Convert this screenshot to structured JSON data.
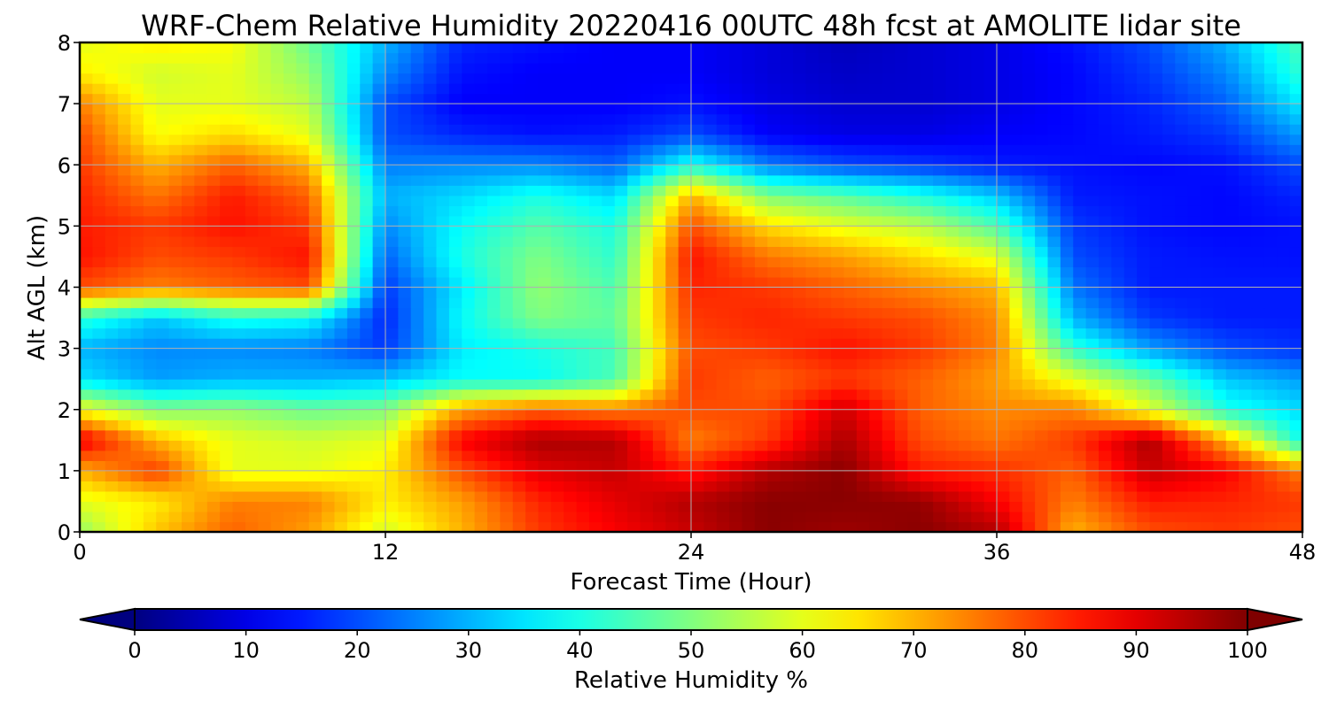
{
  "chart_data": {
    "type": "heatmap",
    "title": "WRF-Chem Relative Humidity 20220416 00UTC 48h fcst at AMOLITE lidar site",
    "xlabel": "Forecast Time (Hour)",
    "ylabel": "Alt AGL (km)",
    "xlim": [
      0,
      48
    ],
    "ylim": [
      0,
      8
    ],
    "x_ticks": [
      0,
      12,
      24,
      36,
      48
    ],
    "y_ticks": [
      0,
      1,
      2,
      3,
      4,
      5,
      6,
      7,
      8
    ],
    "grid": true,
    "colorscale": "jet",
    "colorbar": {
      "label": "Relative Humidity %",
      "range": [
        0,
        100
      ],
      "ticks": [
        0,
        10,
        20,
        30,
        40,
        50,
        60,
        70,
        80,
        90,
        100
      ],
      "orientation": "horizontal",
      "placement": "bottom",
      "extend": "both"
    },
    "x": [
      0,
      3,
      6,
      9,
      12,
      15,
      18,
      21,
      24,
      27,
      30,
      33,
      36,
      39,
      42,
      45,
      48
    ],
    "y": [
      0,
      0.5,
      1,
      1.5,
      2,
      2.5,
      3,
      3.5,
      4,
      4.5,
      5,
      5.5,
      6,
      6.5,
      7,
      7.5,
      8
    ],
    "z": [
      [
        52,
        68,
        78,
        72,
        58,
        70,
        82,
        88,
        93,
        99,
        97,
        99,
        95,
        70,
        80,
        82,
        80
      ],
      [
        60,
        64,
        75,
        75,
        64,
        72,
        84,
        90,
        95,
        99,
        99,
        98,
        88,
        75,
        85,
        84,
        82
      ],
      [
        70,
        82,
        60,
        60,
        64,
        80,
        90,
        93,
        85,
        95,
        99,
        85,
        83,
        78,
        93,
        88,
        75
      ],
      [
        90,
        70,
        60,
        58,
        60,
        88,
        96,
        95,
        75,
        82,
        96,
        80,
        76,
        82,
        96,
        70,
        38
      ],
      [
        62,
        50,
        52,
        48,
        50,
        72,
        78,
        75,
        80,
        80,
        92,
        78,
        74,
        75,
        60,
        40,
        34
      ],
      [
        35,
        28,
        30,
        30,
        32,
        38,
        38,
        45,
        82,
        78,
        82,
        78,
        72,
        60,
        48,
        32,
        28
      ],
      [
        30,
        26,
        26,
        25,
        18,
        36,
        40,
        44,
        80,
        82,
        86,
        82,
        75,
        42,
        28,
        20,
        17
      ],
      [
        42,
        32,
        40,
        38,
        16,
        38,
        50,
        47,
        82,
        84,
        82,
        80,
        74,
        30,
        18,
        15,
        15
      ],
      [
        80,
        75,
        78,
        80,
        18,
        36,
        52,
        45,
        84,
        82,
        78,
        74,
        70,
        24,
        15,
        15,
        15
      ],
      [
        86,
        80,
        82,
        86,
        22,
        40,
        50,
        42,
        86,
        76,
        72,
        66,
        60,
        20,
        15,
        14,
        14
      ],
      [
        85,
        82,
        86,
        82,
        26,
        38,
        46,
        40,
        80,
        66,
        60,
        56,
        45,
        18,
        14,
        13,
        14
      ],
      [
        84,
        76,
        85,
        78,
        30,
        34,
        40,
        34,
        70,
        50,
        46,
        40,
        32,
        15,
        14,
        13,
        16
      ],
      [
        82,
        70,
        78,
        70,
        25,
        26,
        26,
        22,
        40,
        25,
        20,
        18,
        15,
        14,
        13,
        14,
        20
      ],
      [
        80,
        62,
        66,
        60,
        20,
        16,
        14,
        15,
        20,
        12,
        10,
        10,
        12,
        13,
        15,
        18,
        28
      ],
      [
        75,
        60,
        60,
        56,
        20,
        12,
        12,
        12,
        14,
        10,
        8,
        8,
        10,
        13,
        16,
        22,
        36
      ],
      [
        64,
        58,
        60,
        52,
        26,
        14,
        12,
        12,
        12,
        9,
        7,
        8,
        10,
        13,
        18,
        26,
        42
      ],
      [
        60,
        64,
        62,
        48,
        30,
        16,
        14,
        12,
        12,
        9,
        6,
        8,
        10,
        14,
        20,
        30,
        45
      ]
    ]
  }
}
